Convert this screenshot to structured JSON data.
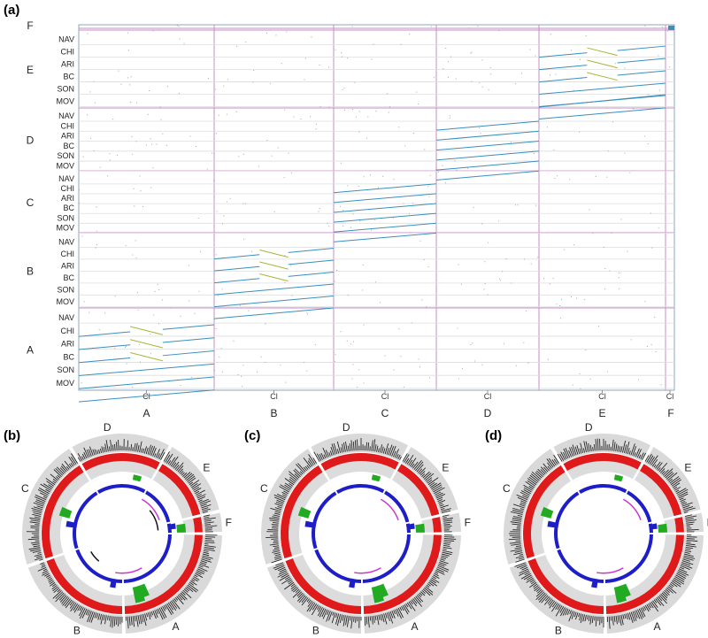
{
  "panel_a": {
    "label": "(a)",
    "chrom_labels": [
      "A",
      "B",
      "C",
      "D",
      "E",
      "F"
    ],
    "cl_label": "Cl",
    "track_labels": [
      "NAV",
      "CHI",
      "ARI",
      "BC",
      "SON",
      "MOV"
    ],
    "colors": {
      "grid": "#c78fc4",
      "line": "#dddddd",
      "synteny_main": "#3a8fbe",
      "synteny_inverted": "#a9b53a",
      "frame": "#8da7bd"
    }
  },
  "circos_panels": [
    {
      "label": "(b)",
      "chroms": [
        "A",
        "B",
        "C",
        "D",
        "E",
        "F"
      ],
      "has_black_arcs": true
    },
    {
      "label": "(c)",
      "chroms": [
        "A",
        "B",
        "C",
        "D",
        "E",
        "F"
      ],
      "has_black_arcs": false
    },
    {
      "label": "(d)",
      "chroms": [
        "A",
        "B",
        "C",
        "D",
        "E",
        "F"
      ],
      "has_black_arcs": false
    }
  ],
  "circos_colors": {
    "outer_ring": "#d9d9d9",
    "red_ring": "#e01a1a",
    "green": "#22aa22",
    "blue": "#1e1ec8",
    "magenta": "#cc33cc",
    "black": "#111111"
  }
}
